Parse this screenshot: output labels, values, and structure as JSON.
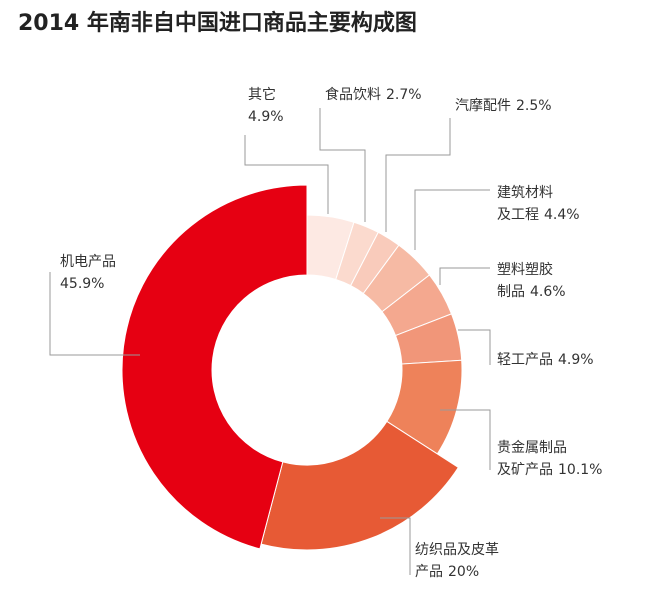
{
  "chart_data": {
    "type": "donut",
    "title": "2014 年南非自中国进口商品主要构成图",
    "categories": [
      "其它",
      "食品饮料",
      "汽摩配件",
      "建筑材料及工程",
      "塑料塑胶制品",
      "轻工产品",
      "贵金属制品及矿产品",
      "纺织品及皮革产品",
      "机电产品"
    ],
    "values": [
      4.9,
      2.7,
      2.5,
      4.4,
      4.6,
      4.9,
      10.1,
      20,
      45.9
    ],
    "value_labels": [
      "4.9%",
      "2.7%",
      "2.5%",
      "4.4%",
      "4.6%",
      "4.9%",
      "10.1%",
      "20%",
      "45.9%"
    ],
    "colors": [
      "#fde9e3",
      "#fbdace",
      "#f9cbbb",
      "#f6baa4",
      "#f4a88f",
      "#f19679",
      "#ee825a",
      "#e75a35",
      "#e60012"
    ]
  }
}
